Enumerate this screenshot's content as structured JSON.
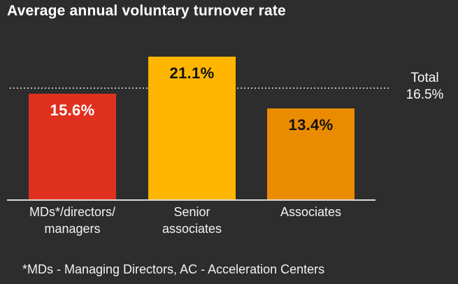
{
  "title": "Average annual voluntary turnover rate",
  "footnote": "*MDs - Managing Directors, AC - Acceleration Centers",
  "colors": {
    "background": "#2d2d2d",
    "title_text": "#ffffff",
    "axis_line": "#d9d9d9",
    "dotted_line": "#b8b8b8",
    "label_text": "#f2f2f2"
  },
  "chart_data": {
    "type": "bar",
    "title": "Average annual voluntary turnover rate",
    "categories": [
      "MDs*/directors/ managers",
      "Senior associates",
      "Associates"
    ],
    "category_lines": [
      [
        "MDs*/directors/",
        "managers"
      ],
      [
        "Senior",
        "associates"
      ],
      [
        "Associates"
      ]
    ],
    "values": [
      15.6,
      21.1,
      13.4
    ],
    "value_labels": [
      "15.6%",
      "21.1%",
      "13.4%"
    ],
    "bar_colors": [
      "#e0301e",
      "#ffb600",
      "#eb8c00"
    ],
    "value_label_colors": [
      "#ffffff",
      "#121212",
      "#121212"
    ],
    "reference_line": {
      "label": "Total",
      "value": 16.5,
      "value_label": "16.5%"
    },
    "unit": "%",
    "ylim": [
      0,
      21.1
    ],
    "xlabel": "",
    "ylabel": "",
    "grid": "off",
    "legend": "none"
  }
}
